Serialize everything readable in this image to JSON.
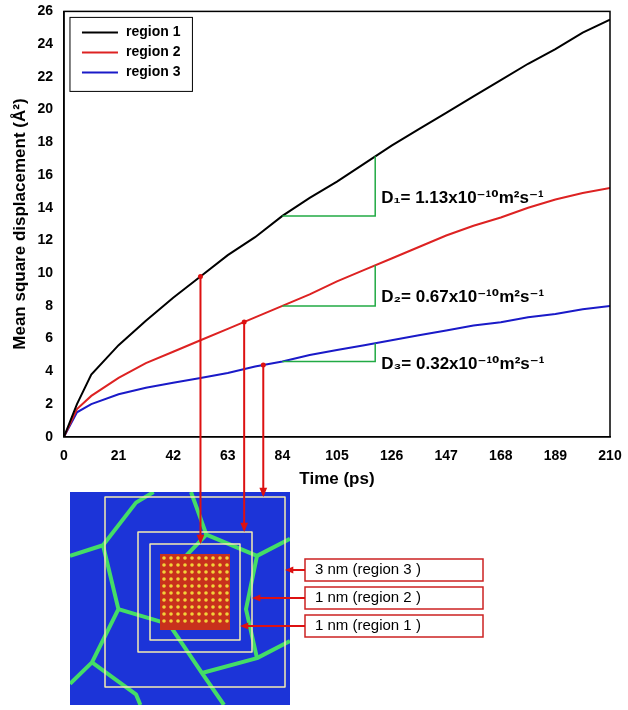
{
  "chart_data": {
    "type": "line",
    "x_label": "Time (ps)",
    "y_label": "Mean square displacement (Å²)",
    "x": [
      0,
      5,
      10.5,
      21,
      31.5,
      42,
      52.5,
      63,
      73.5,
      84,
      94.5,
      105,
      115.5,
      126,
      136.5,
      147,
      157.5,
      168,
      178.5,
      189,
      199.5,
      210
    ],
    "series": [
      {
        "name": "region 1",
        "color": "#000000",
        "values": [
          0,
          2,
          3.8,
          5.6,
          7.1,
          8.5,
          9.8,
          11.1,
          12.2,
          13.5,
          14.6,
          15.6,
          16.7,
          17.8,
          18.8,
          19.8,
          20.8,
          21.8,
          22.8,
          23.7,
          24.7,
          25.5
        ]
      },
      {
        "name": "region 2",
        "color": "#dd2222",
        "values": [
          0,
          1.7,
          2.5,
          3.6,
          4.5,
          5.2,
          5.9,
          6.6,
          7.3,
          8.0,
          8.7,
          9.5,
          10.2,
          10.9,
          11.6,
          12.3,
          12.9,
          13.4,
          14.0,
          14.5,
          14.9,
          15.2
        ]
      },
      {
        "name": "region 3",
        "color": "#1a1ac8",
        "values": [
          0,
          1.5,
          2.0,
          2.6,
          3.0,
          3.3,
          3.6,
          3.9,
          4.3,
          4.6,
          5.0,
          5.3,
          5.6,
          5.9,
          6.2,
          6.5,
          6.8,
          7.0,
          7.3,
          7.5,
          7.8,
          8.0
        ]
      }
    ],
    "annotations": [
      "D₁= 1.13x10⁻¹⁰m²s⁻¹",
      "D₂= 0.67x10⁻¹⁰m²s⁻¹",
      "D₃= 0.32x10⁻¹⁰m²s⁻¹"
    ],
    "xlim": [
      0,
      210
    ],
    "ylim": [
      0,
      26
    ],
    "xticks": [
      0,
      21,
      42,
      63,
      84,
      105,
      126,
      147,
      168,
      189,
      210
    ],
    "yticks": [
      0,
      2,
      4,
      6,
      8,
      10,
      12,
      14,
      16,
      18,
      20,
      22,
      24,
      26
    ],
    "grid": false,
    "legend": "upper left"
  },
  "inset": {
    "labels": [
      "3 nm (region 3 )",
      "1 nm (region 2 )",
      "1 nm (region 1 )"
    ]
  }
}
